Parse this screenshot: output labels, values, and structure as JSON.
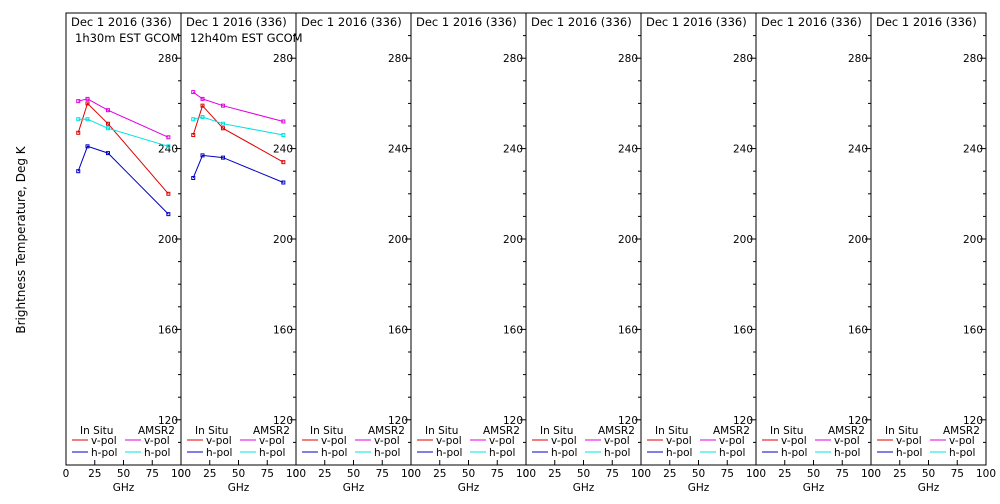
{
  "y_axis_label": "Brightness Temperature, Deg K",
  "colors": {
    "in_situ_v": "#e00000",
    "in_situ_h": "#0000c8",
    "amsr2_v": "#e000e0",
    "amsr2_h": "#00e0e0"
  },
  "chart_data": [
    {
      "type": "line",
      "title": "Dec 1 2016 (336)",
      "subtitle": "1h30m EST GCOM",
      "xlabel": "GHz",
      "xlim": [
        0,
        100
      ],
      "ylim": [
        100,
        300
      ],
      "x_ticks": [
        0,
        25,
        50,
        75,
        100
      ],
      "y_ticks": [
        120,
        160,
        200,
        240,
        280
      ],
      "legend": {
        "left_heading": "In Situ",
        "right_heading": "AMSR2",
        "v_label": "v-pol",
        "h_label": "h-pol"
      },
      "series": [
        {
          "group": "in_situ",
          "pol": "v",
          "x": [
            10.65,
            18.7,
            36.5,
            89.0
          ],
          "y": [
            247,
            260,
            251,
            220
          ]
        },
        {
          "group": "in_situ",
          "pol": "h",
          "x": [
            10.65,
            18.7,
            36.5,
            89.0
          ],
          "y": [
            230,
            241,
            238,
            211
          ]
        },
        {
          "group": "amsr2",
          "pol": "v",
          "x": [
            10.65,
            18.7,
            36.5,
            89.0
          ],
          "y": [
            261,
            262,
            257,
            245
          ]
        },
        {
          "group": "amsr2",
          "pol": "h",
          "x": [
            10.65,
            18.7,
            36.5,
            89.0
          ],
          "y": [
            253,
            253,
            249,
            241
          ]
        }
      ]
    },
    {
      "type": "line",
      "title": "Dec 1 2016 (336)",
      "subtitle": "12h40m EST GCOM",
      "xlabel": "GHz",
      "xlim": [
        0,
        100
      ],
      "ylim": [
        100,
        300
      ],
      "x_ticks": [
        0,
        25,
        50,
        75,
        100
      ],
      "y_ticks": [
        120,
        160,
        200,
        240,
        280
      ],
      "legend": {
        "left_heading": "In Situ",
        "right_heading": "AMSR2",
        "v_label": "v-pol",
        "h_label": "h-pol"
      },
      "series": [
        {
          "group": "in_situ",
          "pol": "v",
          "x": [
            10.65,
            18.7,
            36.5,
            89.0
          ],
          "y": [
            246,
            259,
            249,
            234
          ]
        },
        {
          "group": "in_situ",
          "pol": "h",
          "x": [
            10.65,
            18.7,
            36.5,
            89.0
          ],
          "y": [
            227,
            237,
            236,
            225
          ]
        },
        {
          "group": "amsr2",
          "pol": "v",
          "x": [
            10.65,
            18.7,
            36.5,
            89.0
          ],
          "y": [
            265,
            262,
            259,
            252
          ]
        },
        {
          "group": "amsr2",
          "pol": "h",
          "x": [
            10.65,
            18.7,
            36.5,
            89.0
          ],
          "y": [
            253,
            254,
            251,
            246
          ]
        }
      ]
    },
    {
      "type": "line",
      "title": "Dec 1 2016 (336)",
      "subtitle": "",
      "xlabel": "GHz",
      "xlim": [
        0,
        100
      ],
      "ylim": [
        100,
        300
      ],
      "x_ticks": [
        0,
        25,
        50,
        75,
        100
      ],
      "y_ticks": [
        120,
        160,
        200,
        240,
        280
      ],
      "legend": {
        "left_heading": "In Situ",
        "right_heading": "AMSR2",
        "v_label": "v-pol",
        "h_label": "h-pol"
      },
      "series": []
    },
    {
      "type": "line",
      "title": "Dec 1 2016 (336)",
      "subtitle": "",
      "xlabel": "GHz",
      "xlim": [
        0,
        100
      ],
      "ylim": [
        100,
        300
      ],
      "x_ticks": [
        0,
        25,
        50,
        75,
        100
      ],
      "y_ticks": [
        120,
        160,
        200,
        240,
        280
      ],
      "legend": {
        "left_heading": "In Situ",
        "right_heading": "AMSR2",
        "v_label": "v-pol",
        "h_label": "h-pol"
      },
      "series": []
    },
    {
      "type": "line",
      "title": "Dec 1 2016 (336)",
      "subtitle": "",
      "xlabel": "GHz",
      "xlim": [
        0,
        100
      ],
      "ylim": [
        100,
        300
      ],
      "x_ticks": [
        0,
        25,
        50,
        75,
        100
      ],
      "y_ticks": [
        120,
        160,
        200,
        240,
        280
      ],
      "legend": {
        "left_heading": "In Situ",
        "right_heading": "AMSR2",
        "v_label": "v-pol",
        "h_label": "h-pol"
      },
      "series": []
    },
    {
      "type": "line",
      "title": "Dec 1 2016 (336)",
      "subtitle": "",
      "xlabel": "GHz",
      "xlim": [
        0,
        100
      ],
      "ylim": [
        100,
        300
      ],
      "x_ticks": [
        0,
        25,
        50,
        75,
        100
      ],
      "y_ticks": [
        120,
        160,
        200,
        240,
        280
      ],
      "legend": {
        "left_heading": "In Situ",
        "right_heading": "AMSR2",
        "v_label": "v-pol",
        "h_label": "h-pol"
      },
      "series": []
    },
    {
      "type": "line",
      "title": "Dec 1 2016 (336)",
      "subtitle": "",
      "xlabel": "GHz",
      "xlim": [
        0,
        100
      ],
      "ylim": [
        100,
        300
      ],
      "x_ticks": [
        0,
        25,
        50,
        75,
        100
      ],
      "y_ticks": [
        120,
        160,
        200,
        240,
        280
      ],
      "legend": {
        "left_heading": "In Situ",
        "right_heading": "AMSR2",
        "v_label": "v-pol",
        "h_label": "h-pol"
      },
      "series": []
    },
    {
      "type": "line",
      "title": "Dec 1 2016 (336)",
      "subtitle": "",
      "xlabel": "GHz",
      "xlim": [
        0,
        100
      ],
      "ylim": [
        100,
        300
      ],
      "x_ticks": [
        0,
        25,
        50,
        75,
        100
      ],
      "y_ticks": [
        120,
        160,
        200,
        240,
        280
      ],
      "legend": {
        "left_heading": "In Situ",
        "right_heading": "AMSR2",
        "v_label": "v-pol",
        "h_label": "h-pol"
      },
      "series": []
    }
  ]
}
